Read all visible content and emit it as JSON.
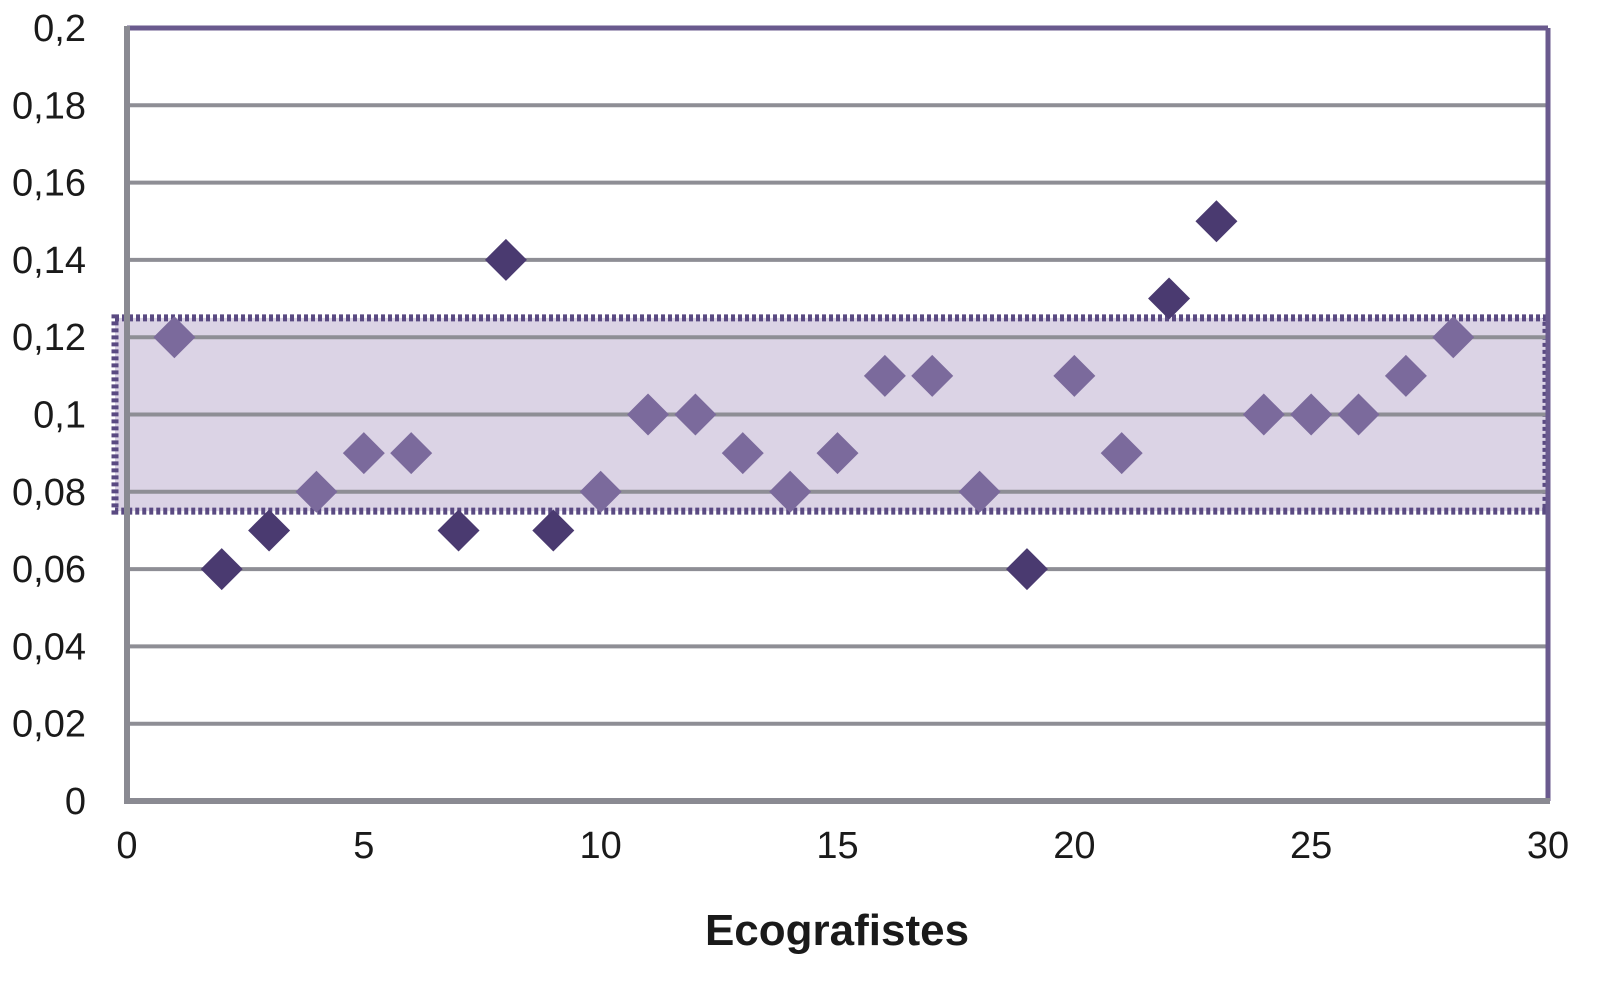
{
  "chart_data": {
    "type": "scatter",
    "title": "",
    "xlabel": "Ecografistes",
    "ylabel": "",
    "xlim": [
      0,
      30
    ],
    "ylim": [
      0,
      0.2
    ],
    "grid": true,
    "x_ticks": [
      "0",
      "5",
      "10",
      "15",
      "20",
      "25",
      "30"
    ],
    "y_ticks": [
      "0",
      "0,02",
      "0,04",
      "0,06",
      "0,08",
      "0,1",
      "0,12",
      "0,14",
      "0,16",
      "0,18",
      "0,2"
    ],
    "reference_band": {
      "from": 0.075,
      "to": 0.125
    },
    "points": [
      {
        "x": 1,
        "y": 0.12
      },
      {
        "x": 2,
        "y": 0.06
      },
      {
        "x": 3,
        "y": 0.07
      },
      {
        "x": 4,
        "y": 0.08
      },
      {
        "x": 5,
        "y": 0.09
      },
      {
        "x": 6,
        "y": 0.09
      },
      {
        "x": 7,
        "y": 0.07
      },
      {
        "x": 8,
        "y": 0.14
      },
      {
        "x": 9,
        "y": 0.07
      },
      {
        "x": 10,
        "y": 0.08
      },
      {
        "x": 11,
        "y": 0.1
      },
      {
        "x": 12,
        "y": 0.1
      },
      {
        "x": 13,
        "y": 0.09
      },
      {
        "x": 14,
        "y": 0.08
      },
      {
        "x": 15,
        "y": 0.09
      },
      {
        "x": 16,
        "y": 0.11
      },
      {
        "x": 17,
        "y": 0.11
      },
      {
        "x": 18,
        "y": 0.08
      },
      {
        "x": 19,
        "y": 0.06
      },
      {
        "x": 20,
        "y": 0.11
      },
      {
        "x": 21,
        "y": 0.09
      },
      {
        "x": 22,
        "y": 0.13
      },
      {
        "x": 23,
        "y": 0.15
      },
      {
        "x": 24,
        "y": 0.1
      },
      {
        "x": 25,
        "y": 0.1
      },
      {
        "x": 26,
        "y": 0.1
      },
      {
        "x": 27,
        "y": 0.11
      },
      {
        "x": 28,
        "y": 0.12
      }
    ],
    "colors": {
      "frame": "#6a5a8e",
      "grid": "#8e8e95",
      "band_fill": "#dbd3e5",
      "band_border": "#5a4a82",
      "marker_inside": "#7b6a9c",
      "marker_outside": "#4a3a70"
    }
  }
}
